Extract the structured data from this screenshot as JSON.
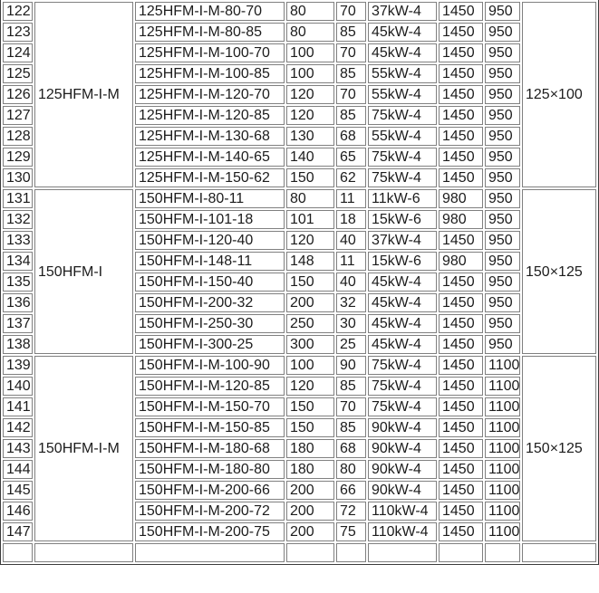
{
  "table": {
    "groups": [
      {
        "name": "125HFM-I-M",
        "size": "125×100",
        "rows": [
          {
            "no": "122",
            "model": "125HFM-I-M-80-70",
            "flow": "80",
            "head": "70",
            "power": "37kW-4",
            "speed": "1450",
            "weight": "950"
          },
          {
            "no": "123",
            "model": "125HFM-I-M-80-85",
            "flow": "80",
            "head": "85",
            "power": "45kW-4",
            "speed": "1450",
            "weight": "950"
          },
          {
            "no": "124",
            "model": "125HFM-I-M-100-70",
            "flow": "100",
            "head": "70",
            "power": "45kW-4",
            "speed": "1450",
            "weight": "950"
          },
          {
            "no": "125",
            "model": "125HFM-I-M-100-85",
            "flow": "100",
            "head": "85",
            "power": "55kW-4",
            "speed": "1450",
            "weight": "950"
          },
          {
            "no": "126",
            "model": "125HFM-I-M-120-70",
            "flow": "120",
            "head": "70",
            "power": "55kW-4",
            "speed": "1450",
            "weight": "950"
          },
          {
            "no": "127",
            "model": "125HFM-I-M-120-85",
            "flow": "120",
            "head": "85",
            "power": "75kW-4",
            "speed": "1450",
            "weight": "950"
          },
          {
            "no": "128",
            "model": "125HFM-I-M-130-68",
            "flow": "130",
            "head": "68",
            "power": "55kW-4",
            "speed": "1450",
            "weight": "950"
          },
          {
            "no": "129",
            "model": "125HFM-I-M-140-65",
            "flow": "140",
            "head": "65",
            "power": "75kW-4",
            "speed": "1450",
            "weight": "950"
          },
          {
            "no": "130",
            "model": "125HFM-I-M-150-62",
            "flow": "150",
            "head": "62",
            "power": "75kW-4",
            "speed": "1450",
            "weight": "950"
          }
        ]
      },
      {
        "name": "150HFM-I",
        "size": "150×125",
        "rows": [
          {
            "no": "131",
            "model": "150HFM-I-80-11",
            "flow": "80",
            "head": "11",
            "power": "11kW-6",
            "speed": "980",
            "weight": "950"
          },
          {
            "no": "132",
            "model": "150HFM-I-101-18",
            "flow": "101",
            "head": "18",
            "power": "15kW-6",
            "speed": "980",
            "weight": "950"
          },
          {
            "no": "133",
            "model": "150HFM-I-120-40",
            "flow": "120",
            "head": "40",
            "power": "37kW-4",
            "speed": "1450",
            "weight": "950"
          },
          {
            "no": "134",
            "model": "150HFM-I-148-11",
            "flow": "148",
            "head": "11",
            "power": "15kW-6",
            "speed": "980",
            "weight": "950"
          },
          {
            "no": "135",
            "model": "150HFM-I-150-40",
            "flow": "150",
            "head": "40",
            "power": "45kW-4",
            "speed": "1450",
            "weight": "950"
          },
          {
            "no": "136",
            "model": "150HFM-I-200-32",
            "flow": "200",
            "head": "32",
            "power": "45kW-4",
            "speed": "1450",
            "weight": "950"
          },
          {
            "no": "137",
            "model": "150HFM-I-250-30",
            "flow": "250",
            "head": "30",
            "power": "45kW-4",
            "speed": "1450",
            "weight": "950"
          },
          {
            "no": "138",
            "model": "150HFM-I-300-25",
            "flow": "300",
            "head": "25",
            "power": "45kW-4",
            "speed": "1450",
            "weight": "950"
          }
        ]
      },
      {
        "name": "150HFM-I-M",
        "size": "150×125",
        "rows": [
          {
            "no": "139",
            "model": "150HFM-I-M-100-90",
            "flow": "100",
            "head": "90",
            "power": "75kW-4",
            "speed": "1450",
            "weight": "1100"
          },
          {
            "no": "140",
            "model": "150HFM-I-M-120-85",
            "flow": "120",
            "head": "85",
            "power": "75kW-4",
            "speed": "1450",
            "weight": "1100"
          },
          {
            "no": "141",
            "model": "150HFM-I-M-150-70",
            "flow": "150",
            "head": "70",
            "power": "75kW-4",
            "speed": "1450",
            "weight": "1100"
          },
          {
            "no": "142",
            "model": "150HFM-I-M-150-85",
            "flow": "150",
            "head": "85",
            "power": "90kW-4",
            "speed": "1450",
            "weight": "1100"
          },
          {
            "no": "143",
            "model": "150HFM-I-M-180-68",
            "flow": "180",
            "head": "68",
            "power": "90kW-4",
            "speed": "1450",
            "weight": "1100"
          },
          {
            "no": "144",
            "model": "150HFM-I-M-180-80",
            "flow": "180",
            "head": "80",
            "power": "90kW-4",
            "speed": "1450",
            "weight": "1100"
          },
          {
            "no": "145",
            "model": "150HFM-I-M-200-66",
            "flow": "200",
            "head": "66",
            "power": "90kW-4",
            "speed": "1450",
            "weight": "1100"
          },
          {
            "no": "146",
            "model": "150HFM-I-M-200-72",
            "flow": "200",
            "head": "72",
            "power": "110kW-4",
            "speed": "1450",
            "weight": "1100"
          },
          {
            "no": "147",
            "model": "150HFM-I-M-200-75",
            "flow": "200",
            "head": "75",
            "power": "110kW-4",
            "speed": "1450",
            "weight": "1100"
          }
        ]
      }
    ]
  }
}
